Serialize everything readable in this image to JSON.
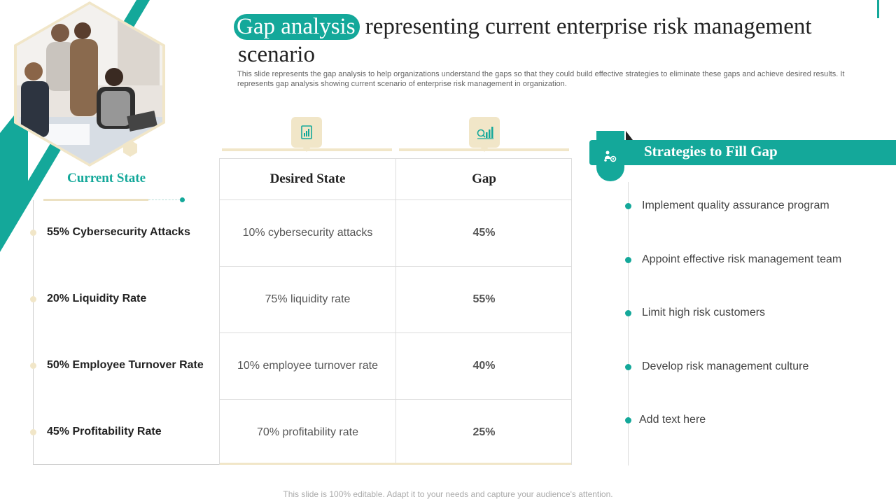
{
  "title": {
    "highlight": "Gap analysis",
    "rest": "representing current enterprise risk management scenario"
  },
  "subtitle": "This slide represents the gap analysis to help organizations understand the gaps so that they could build effective strategies to eliminate these gaps and achieve desired results. It represents gap analysis showing current scenario of enterprise risk management in organization.",
  "current_state": {
    "heading": "Current State",
    "items": [
      "55% Cybersecurity Attacks",
      "20% Liquidity Rate",
      "50% Employee Turnover Rate",
      "45% Profitability Rate"
    ]
  },
  "table": {
    "headers": [
      "Desired State",
      "Gap"
    ],
    "icons": [
      "report-chart-icon",
      "bar-chart-magnifier-icon"
    ],
    "rows": [
      {
        "desired": "10% cybersecurity  attacks",
        "gap": "45%"
      },
      {
        "desired": "75% liquidity rate",
        "gap": "55%"
      },
      {
        "desired": "10% employee turnover  rate",
        "gap": "40%"
      },
      {
        "desired": "70% profitability rate",
        "gap": "25%"
      }
    ]
  },
  "strategies": {
    "heading": "Strategies to Fill Gap",
    "icon": "people-gear-icon",
    "items": [
      "Implement  quality assurance program",
      "Appoint effective risk management team",
      "Limit high risk customers",
      "Develop risk management  culture",
      "Add  text here"
    ]
  },
  "footer": "This slide is 100% editable. Adapt it to your needs and capture your audience's attention.",
  "colors": {
    "accent": "#14a89a",
    "beige": "#f1e6c8"
  }
}
